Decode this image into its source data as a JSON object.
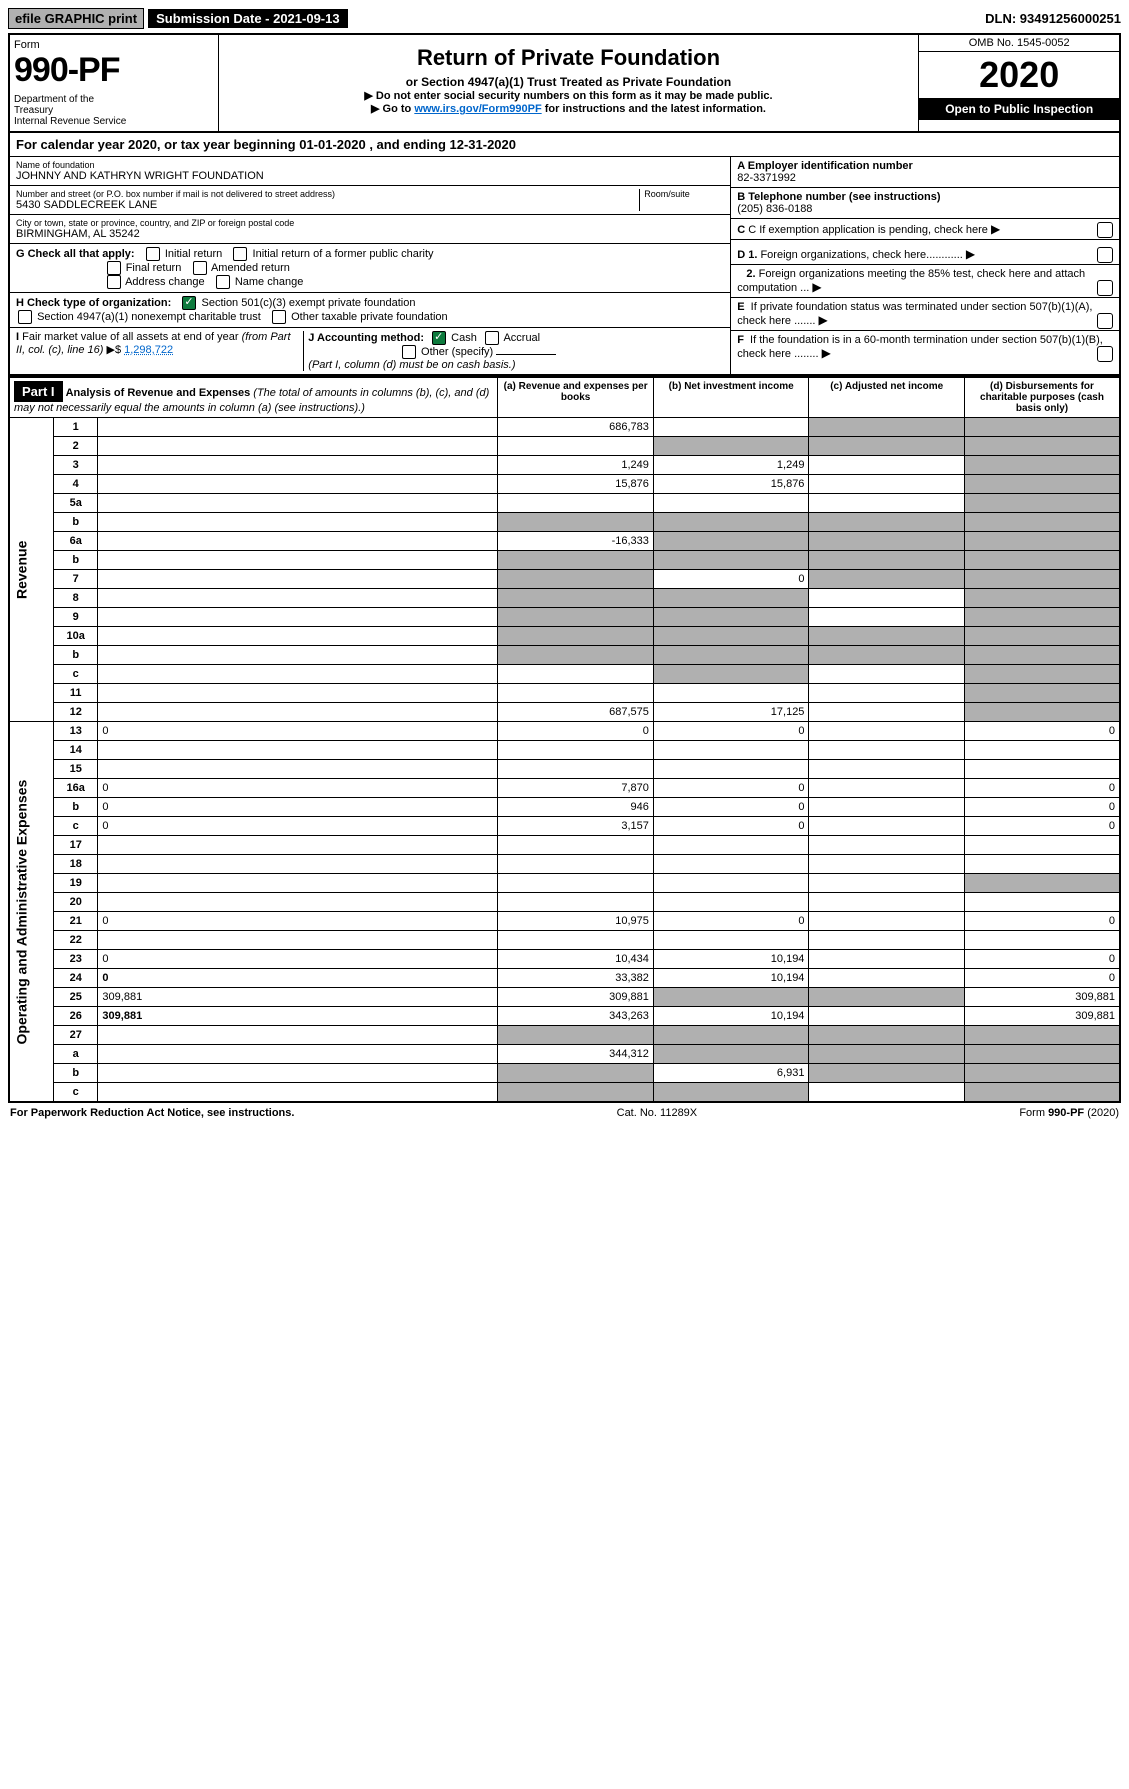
{
  "topbar": {
    "efile": "efile GRAPHIC print",
    "subdate": "Submission Date - 2021-09-13",
    "dln": "DLN: 93491256000251"
  },
  "header": {
    "form_label": "Form",
    "form_number": "990-PF",
    "dept": "Department of the Treasury\nInternal Revenue Service",
    "title": "Return of Private Foundation",
    "subtitle": "or Section 4947(a)(1) Trust Treated as Private Foundation",
    "note1": "▶ Do not enter social security numbers on this form as it may be made public.",
    "note2_pre": "▶ Go to ",
    "note2_link": "www.irs.gov/Form990PF",
    "note2_post": " for instructions and the latest information.",
    "omb": "OMB No. 1545-0052",
    "year": "2020",
    "open": "Open to Public Inspection"
  },
  "calyear": "For calendar year 2020, or tax year beginning 01-01-2020              , and ending 12-31-2020",
  "info": {
    "name_label": "Name of foundation",
    "name": "JOHNNY AND KATHRYN WRIGHT FOUNDATION",
    "addr_label": "Number and street (or P.O. box number if mail is not delivered to street address)",
    "addr": "5430 SADDLECREEK LANE",
    "room_label": "Room/suite",
    "city_label": "City or town, state or province, country, and ZIP or foreign postal code",
    "city": "BIRMINGHAM, AL  35242",
    "ein_label": "A Employer identification number",
    "ein": "82-3371992",
    "phone_label": "B Telephone number (see instructions)",
    "phone": "(205) 836-0188",
    "c": "C If exemption application is pending, check here",
    "d1": "D 1. Foreign organizations, check here............",
    "d2": "2. Foreign organizations meeting the 85% test, check here and attach computation ...",
    "e": "E  If private foundation status was terminated under section 507(b)(1)(A), check here .......",
    "f": "F  If the foundation is in a 60-month termination under section 507(b)(1)(B), check here ........"
  },
  "g": {
    "label": "G Check all that apply:",
    "opts": [
      "Initial return",
      "Initial return of a former public charity",
      "Final return",
      "Amended return",
      "Address change",
      "Name change"
    ]
  },
  "h": {
    "label": "H Check type of organization:",
    "opt1": "Section 501(c)(3) exempt private foundation",
    "opt2": "Section 4947(a)(1) nonexempt charitable trust",
    "opt3": "Other taxable private foundation"
  },
  "i": {
    "label": "I Fair market value of all assets at end of year (from Part II, col. (c), line 16) ▶$",
    "value": "1,298,722"
  },
  "j": {
    "label": "J Accounting method:",
    "cash": "Cash",
    "accrual": "Accrual",
    "other": "Other (specify)",
    "note": "(Part I, column (d) must be on cash basis.)"
  },
  "part1": {
    "label": "Part I",
    "title": "Analysis of Revenue and Expenses",
    "note": "(The total of amounts in columns (b), (c), and (d) may not necessarily equal the amounts in column (a) (see instructions).)",
    "col_a": "(a)   Revenue and expenses per books",
    "col_b": "(b)  Net investment income",
    "col_c": "(c)  Adjusted net income",
    "col_d": "(d)  Disbursements for charitable purposes (cash basis only)"
  },
  "revenue_label": "Revenue",
  "expenses_label": "Operating and Administrative Expenses",
  "rows": {
    "1": {
      "n": "1",
      "d": "",
      "a": "686,783",
      "b": "",
      "c": "",
      "shade": [
        "c",
        "d"
      ]
    },
    "2": {
      "n": "2",
      "d": "",
      "a": "",
      "b": "",
      "c": "",
      "shade": [
        "b",
        "c",
        "d"
      ]
    },
    "3": {
      "n": "3",
      "d": "",
      "a": "1,249",
      "b": "1,249",
      "c": "",
      "shade": [
        "d"
      ]
    },
    "4": {
      "n": "4",
      "d": "",
      "a": "15,876",
      "b": "15,876",
      "c": "",
      "shade": [
        "d"
      ]
    },
    "5a": {
      "n": "5a",
      "d": "",
      "a": "",
      "b": "",
      "c": "",
      "shade": [
        "d"
      ]
    },
    "5b": {
      "n": "b",
      "d": "",
      "a": "",
      "b": "",
      "c": "",
      "shade": [
        "a",
        "b",
        "c",
        "d"
      ]
    },
    "6a": {
      "n": "6a",
      "d": "",
      "a": "-16,333",
      "b": "",
      "c": "",
      "shade": [
        "b",
        "c",
        "d"
      ]
    },
    "6b": {
      "n": "b",
      "d": "",
      "a": "",
      "b": "",
      "c": "",
      "shade": [
        "a",
        "b",
        "c",
        "d"
      ]
    },
    "7": {
      "n": "7",
      "d": "",
      "a": "",
      "b": "0",
      "c": "",
      "shade": [
        "a",
        "c",
        "d"
      ]
    },
    "8": {
      "n": "8",
      "d": "",
      "a": "",
      "b": "",
      "c": "",
      "shade": [
        "a",
        "b",
        "d"
      ]
    },
    "9": {
      "n": "9",
      "d": "",
      "a": "",
      "b": "",
      "c": "",
      "shade": [
        "a",
        "b",
        "d"
      ]
    },
    "10a": {
      "n": "10a",
      "d": "",
      "a": "",
      "b": "",
      "c": "",
      "shade": [
        "a",
        "b",
        "c",
        "d"
      ]
    },
    "10b": {
      "n": "b",
      "d": "",
      "a": "",
      "b": "",
      "c": "",
      "shade": [
        "a",
        "b",
        "c",
        "d"
      ]
    },
    "10c": {
      "n": "c",
      "d": "",
      "a": "",
      "b": "",
      "c": "",
      "shade": [
        "b",
        "d"
      ]
    },
    "11": {
      "n": "11",
      "d": "",
      "a": "",
      "b": "",
      "c": "",
      "shade": [
        "d"
      ]
    },
    "12": {
      "n": "12",
      "d": "",
      "a": "687,575",
      "b": "17,125",
      "c": "",
      "shade": [
        "d"
      ],
      "bold": true
    },
    "13": {
      "n": "13",
      "d": "0",
      "a": "0",
      "b": "0",
      "c": ""
    },
    "14": {
      "n": "14",
      "d": "",
      "a": "",
      "b": "",
      "c": ""
    },
    "15": {
      "n": "15",
      "d": "",
      "a": "",
      "b": "",
      "c": ""
    },
    "16a": {
      "n": "16a",
      "d": "0",
      "a": "7,870",
      "b": "0",
      "c": ""
    },
    "16b": {
      "n": "b",
      "d": "0",
      "a": "946",
      "b": "0",
      "c": ""
    },
    "16c": {
      "n": "c",
      "d": "0",
      "a": "3,157",
      "b": "0",
      "c": ""
    },
    "17": {
      "n": "17",
      "d": "",
      "a": "",
      "b": "",
      "c": ""
    },
    "18": {
      "n": "18",
      "d": "",
      "a": "",
      "b": "",
      "c": ""
    },
    "19": {
      "n": "19",
      "d": "",
      "a": "",
      "b": "",
      "c": "",
      "shade": [
        "d"
      ]
    },
    "20": {
      "n": "20",
      "d": "",
      "a": "",
      "b": "",
      "c": ""
    },
    "21": {
      "n": "21",
      "d": "0",
      "a": "10,975",
      "b": "0",
      "c": ""
    },
    "22": {
      "n": "22",
      "d": "",
      "a": "",
      "b": "",
      "c": ""
    },
    "23": {
      "n": "23",
      "d": "0",
      "a": "10,434",
      "b": "10,194",
      "c": ""
    },
    "24": {
      "n": "24",
      "d": "0",
      "a": "33,382",
      "b": "10,194",
      "c": "",
      "bold": true
    },
    "25": {
      "n": "25",
      "d": "309,881",
      "a": "309,881",
      "b": "",
      "c": "",
      "shade": [
        "b",
        "c"
      ]
    },
    "26": {
      "n": "26",
      "d": "309,881",
      "a": "343,263",
      "b": "10,194",
      "c": "",
      "bold": true
    },
    "27": {
      "n": "27",
      "d": "",
      "a": "",
      "b": "",
      "c": "",
      "shade": [
        "a",
        "b",
        "c",
        "d"
      ]
    },
    "27a": {
      "n": "a",
      "d": "",
      "a": "344,312",
      "b": "",
      "c": "",
      "shade": [
        "b",
        "c",
        "d"
      ],
      "bold": true
    },
    "27b": {
      "n": "b",
      "d": "",
      "a": "",
      "b": "6,931",
      "c": "",
      "shade": [
        "a",
        "c",
        "d"
      ],
      "bold": true
    },
    "27c": {
      "n": "c",
      "d": "",
      "a": "",
      "b": "",
      "c": "",
      "shade": [
        "a",
        "b",
        "d"
      ],
      "bold": true
    }
  },
  "footer": {
    "left": "For Paperwork Reduction Act Notice, see instructions.",
    "mid": "Cat. No. 11289X",
    "right": "Form 990-PF (2020)"
  }
}
